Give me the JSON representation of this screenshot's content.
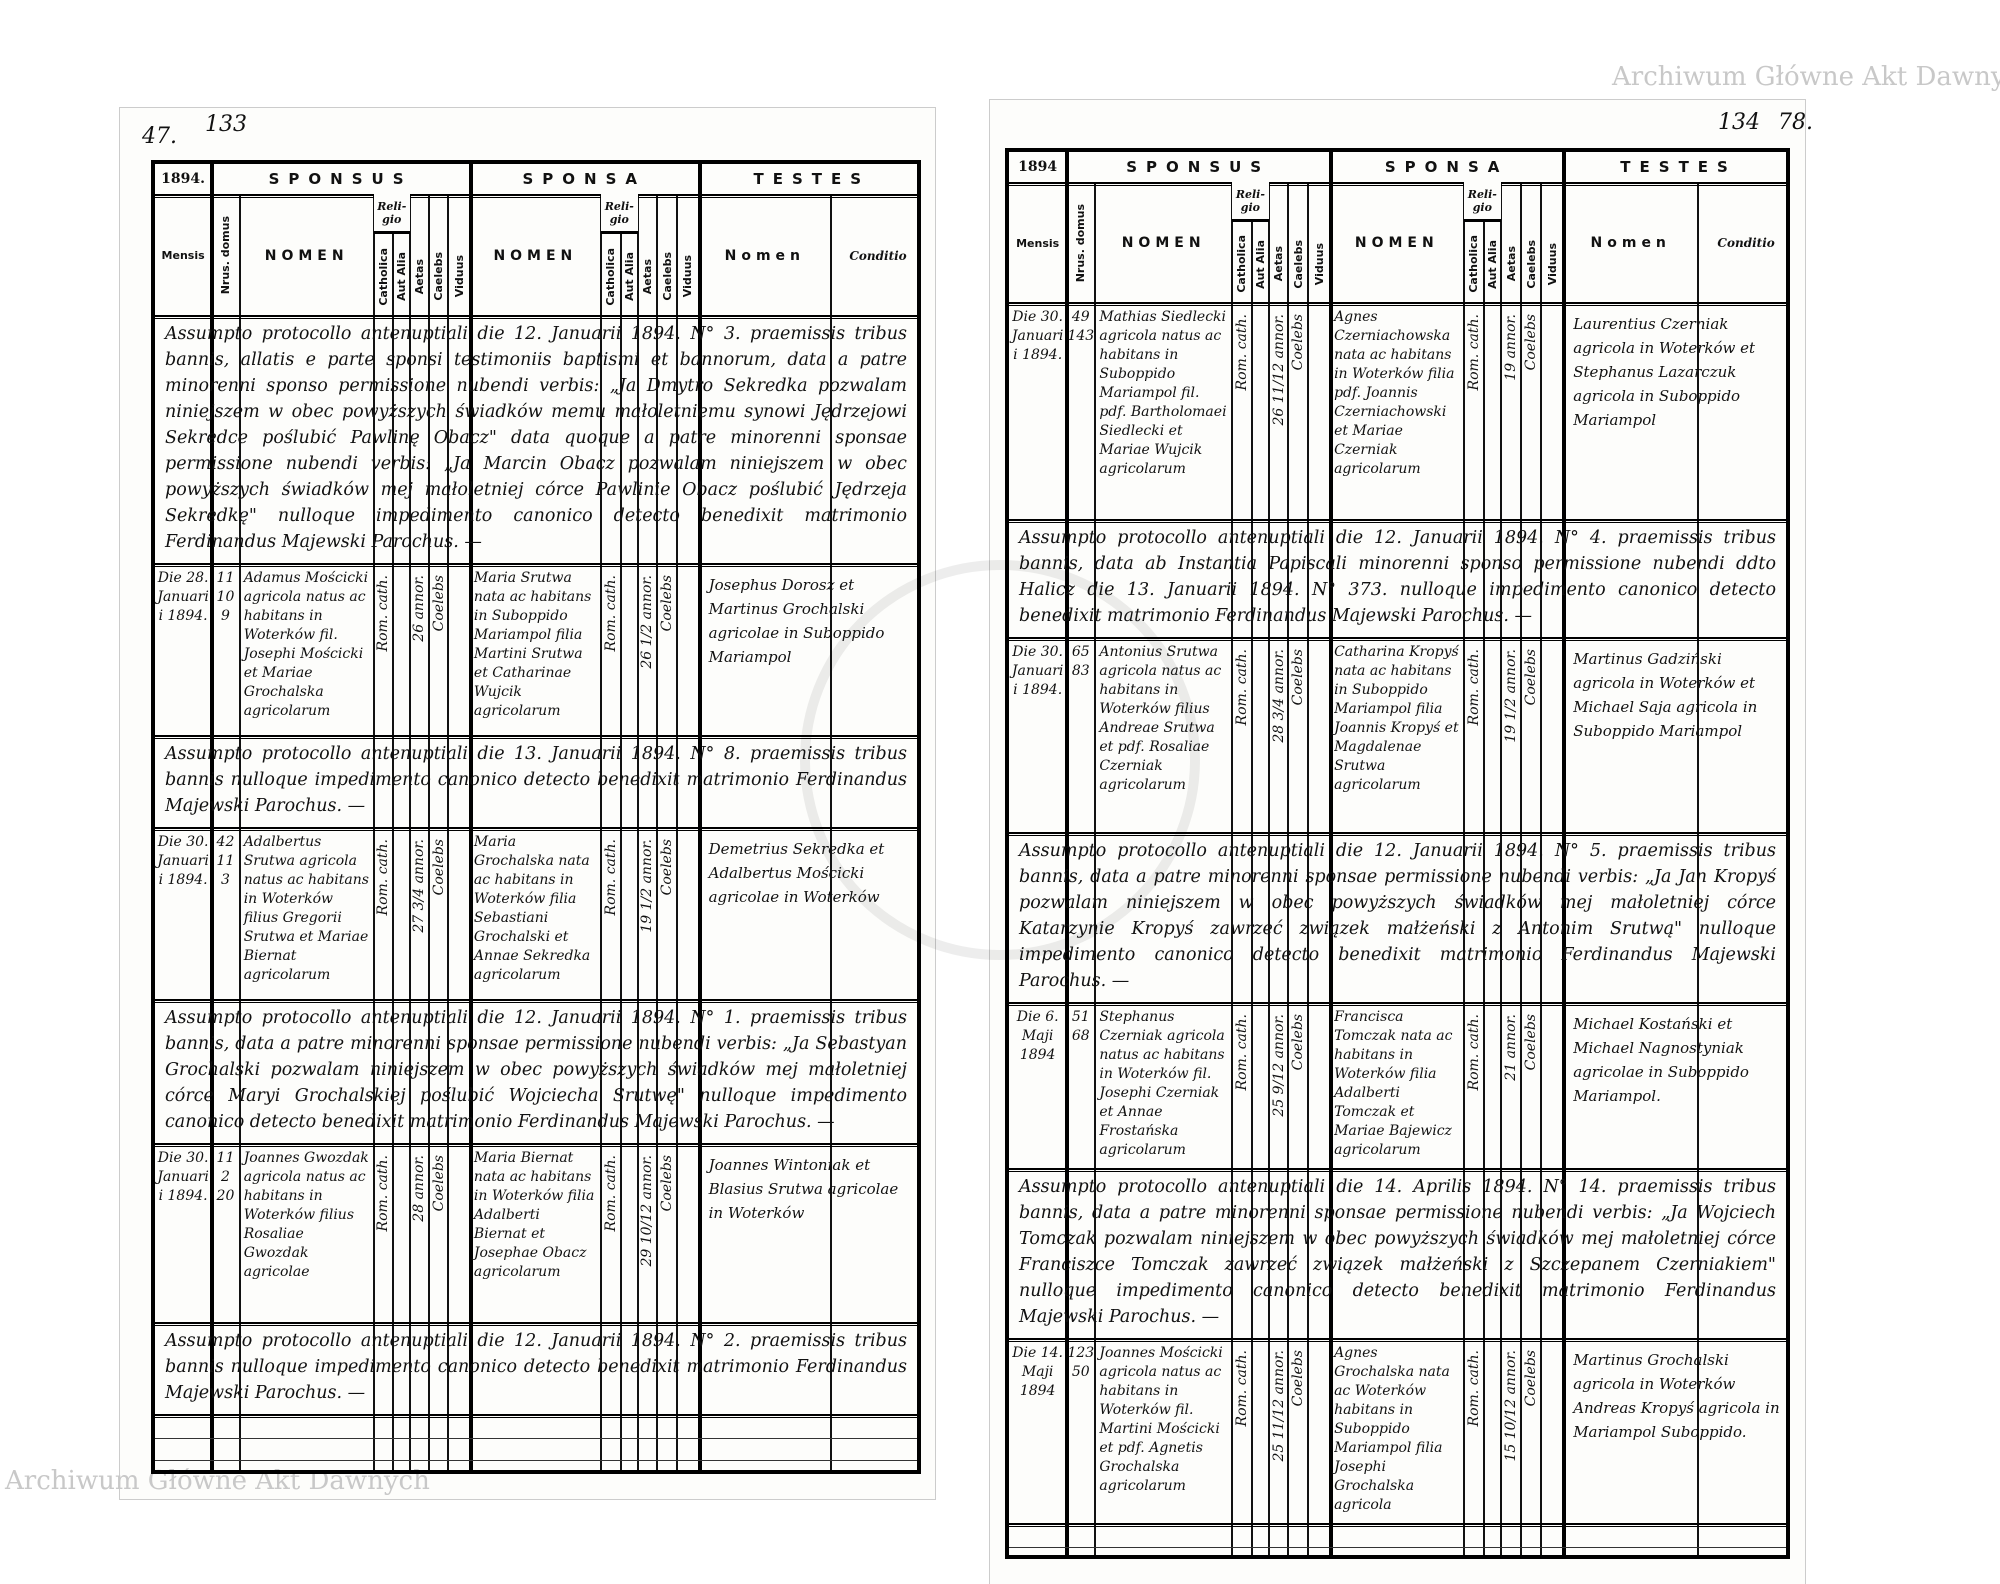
{
  "header": {
    "sponsus": "SPONSUS",
    "sponsa": "SPONSA",
    "testes": "TESTES",
    "mensis": "Mensis",
    "nrus_domus": "Nrus. domus",
    "nomen": "NOMEN",
    "religio": "Reli-gio",
    "catholica": "Catholica",
    "aut_alia": "Aut Alia",
    "aetas": "Aetas",
    "caelebs": "Caelebs",
    "viduus": "Viduus",
    "testes_nomen": "Nomen",
    "conditio": "Conditio"
  },
  "watermark": "Archiwum Główne Akt Dawnych",
  "pages": [
    {
      "page_number": "47.",
      "archive_number": "133",
      "year": "1894.",
      "rows": [
        {
          "type": "note",
          "text": "Assumpto protocollo antenuptiali die 12. Januarii 1894. N° 3. praemissis tribus bannis, allatis e parte sponsi testimoniis baptismi et bannorum, data a patre minorenni sponso permissione nubendi verbis: „Ja Dmytro Sekredka pozwalam niniejszem w obec powyższych świadków memu małoletniemu synowi Jędrzejowi Sekredce poślubić Pawlinę Obacz\" data quoque a patre minorenni sponsae permissione nubendi verbis: „Ja Marcin Obacz pozwalam niniejszem w obec powyższych świadków mej małoletniej córce Pawlinie Obacz poślubić Jędrzeja Sekredkę\" nulloque impedimento canonico detecto benedixit matrimonio Ferdinandus Majewski Parochus. —"
        },
        {
          "type": "entry",
          "mensis": "Die 28. Januarii 1894.",
          "nrus": [
            "11",
            "109"
          ],
          "sponsus": {
            "nomen": "Adamus Mościcki agricola natus ac habitans in Woterków fil. Josephi Mościcki et Mariae Grochalska agricolarum",
            "religio": "Rom. cath.",
            "aetas": "26 annor.",
            "status": "Coelebs"
          },
          "sponsa": {
            "nomen": "Maria Srutwa nata ac habitans in Suboppido Mariampol filia Martini Srutwa et Catharinae Wujcik agricolarum",
            "religio": "Rom. cath.",
            "aetas": "26 1/2 annor.",
            "status": "Coelebs"
          },
          "testes": "Josephus Dorosz et Martinus Grochalski agricolae in Suboppido Mariampol"
        },
        {
          "type": "note",
          "text": "Assumpto protocollo antenuptiali die 13. Januarii 1894. N° 8. praemissis tribus bannis nulloque impedimento canonico detecto benedixit matrimonio Ferdinandus Majewski Parochus. —"
        },
        {
          "type": "entry",
          "mensis": "Die 30. Januarii 1894.",
          "nrus": [
            "42",
            "113"
          ],
          "sponsus": {
            "nomen": "Adalbertus Srutwa agricola natus ac habitans in Woterków filius Gregorii Srutwa et Mariae Biernat agricolarum",
            "religio": "Rom. cath.",
            "aetas": "27 3/4 annor.",
            "status": "Coelebs"
          },
          "sponsa": {
            "nomen": "Maria Grochalska nata ac habitans in Woterków filia Sebastiani Grochalski et Annae Sekredka agricolarum",
            "religio": "Rom. cath.",
            "aetas": "19 1/2 annor.",
            "status": "Coelebs"
          },
          "testes": "Demetrius Sekredka et Adalbertus Mościcki agricolae in Woterków"
        },
        {
          "type": "note",
          "text": "Assumpto protocollo antenuptiali die 12. Januarii 1894. N° 1. praemissis tribus bannis, data a patre minorenni sponsae permissione nubendi verbis: „Ja Sebastyan Grochalski pozwalam niniejszem w obec powyższych świadków mej małoletniej córce Maryi Grochalskiej poślubić Wojciecha Srutwę\" nulloque impedimento canonico detecto benedixit matrimonio Ferdinandus Majewski Parochus. —"
        },
        {
          "type": "entry",
          "mensis": "Die 30. Januarii 1894.",
          "nrus": [
            "112",
            "20"
          ],
          "sponsus": {
            "nomen": "Joannes Gwozdak agricola natus ac habitans in Woterków filius Rosaliae Gwozdak agricolae",
            "religio": "Rom. cath.",
            "aetas": "28 annor.",
            "status": "Coelebs"
          },
          "sponsa": {
            "nomen": "Maria Biernat nata ac habitans in Woterków filia Adalberti Biernat et Josephae Obacz agricolarum",
            "religio": "Rom. cath.",
            "aetas": "29 10/12 annor.",
            "status": "Coelebs"
          },
          "testes": "Joannes Wintoniak et Blasius Srutwa agricolae in Woterków"
        },
        {
          "type": "note",
          "text": "Assumpto protocollo antenuptiali die 12. Januarii 1894. N° 2. praemissis tribus bannis nulloque impedimento canonico detecto benedixit matrimonio Ferdinandus Majewski Parochus. —"
        }
      ]
    },
    {
      "page_number": "78.",
      "archive_number": "134",
      "year": "1894",
      "rows": [
        {
          "type": "entry",
          "mensis": "Die 30. Januarii 1894.",
          "nrus": [
            "49",
            "143"
          ],
          "sponsus": {
            "nomen": "Mathias Siedlecki agricola natus ac habitans in Suboppido Mariampol fil. pdf. Bartholomaei Siedlecki et Mariae Wujcik agricolarum",
            "religio": "Rom. cath.",
            "aetas": "26 11/12 annor.",
            "status": "Coelebs"
          },
          "sponsa": {
            "nomen": "Agnes Czerniachowska nata ac habitans in Woterków filia pdf. Joannis Czerniachowski et Mariae Czerniak agricolarum",
            "religio": "Rom. cath.",
            "aetas": "19 annor.",
            "status": "Coelebs"
          },
          "testes": "Laurentius Czerniak agricola in Woterków et Stephanus Lazarczuk agricola in Suboppido Mariampol"
        },
        {
          "type": "note",
          "text": "Assumpto protocollo antenuptiali die 12. Januarii 1894. N° 4. praemissis tribus bannis, data ab Instantia Papiscali minorenni sponso permissione nubendi ddto Halicz die 13. Januarii 1894. N° 373. nulloque impedimento canonico detecto benedixit matrimonio Ferdinandus Majewski Parochus. —"
        },
        {
          "type": "entry",
          "mensis": "Die 30. Januarii 1894.",
          "nrus": [
            "65",
            "83"
          ],
          "sponsus": {
            "nomen": "Antonius Srutwa agricola natus ac habitans in Woterków filius Andreae Srutwa et pdf. Rosaliae Czerniak agricolarum",
            "religio": "Rom. cath.",
            "aetas": "28 3/4 annor.",
            "status": "Coelebs"
          },
          "sponsa": {
            "nomen": "Catharina Kropyś nata ac habitans in Suboppido Mariampol filia Joannis Kropyś et Magdalenae Srutwa agricolarum",
            "religio": "Rom. cath.",
            "aetas": "19 1/2 annor.",
            "status": "Coelebs"
          },
          "testes": "Martinus Gadziński agricola in Woterków et Michael Saja agricola in Suboppido Mariampol"
        },
        {
          "type": "note",
          "text": "Assumpto protocollo antenuptiali die 12. Januarii 1894. N° 5. praemissis tribus bannis, data a patre minorenni sponsae permissione nubendi verbis: „Ja Jan Kropyś pozwalam niniejszem w obec powyższych świadków mej małoletniej córce Katarzynie Kropyś zawrzeć związek małżeński z Antonim Srutwą\" nulloque impedimento canonico detecto benedixit matrimonio Ferdinandus Majewski Parochus. —"
        },
        {
          "type": "entry",
          "mensis": "Die 6. Maji 1894",
          "nrus": [
            "51",
            "68"
          ],
          "sponsus": {
            "nomen": "Stephanus Czerniak agricola natus ac habitans in Woterków fil. Josephi Czerniak et Annae Frostańska agricolarum",
            "religio": "Rom. cath.",
            "aetas": "25 9/12 annor.",
            "status": "Coelebs"
          },
          "sponsa": {
            "nomen": "Francisca Tomczak nata ac habitans in Woterków filia Adalberti Tomczak et Mariae Bajewicz agricolarum",
            "religio": "Rom. cath.",
            "aetas": "21 annor.",
            "status": "Coelebs"
          },
          "testes": "Michael Kostański et Michael Nagnostyniak agricolae in Suboppido Mariampol."
        },
        {
          "type": "note",
          "text": "Assumpto protocollo antenuptiali die 14. Aprilis 1894. N° 14. praemissis tribus bannis, data a patre minorenni sponsae permissione nubendi verbis: „Ja Wojciech Tomczak pozwalam niniejszem w obec powyższych świadków mej małoletniej córce Franciszce Tomczak zawrzeć związek małżeński z Szczepanem Czerniakiem\" nulloque impedimento canonico detecto benedixit matrimonio Ferdinandus Majewski Parochus. —"
        },
        {
          "type": "entry",
          "mensis": "Die 14. Maji 1894",
          "nrus": [
            "123",
            "50"
          ],
          "sponsus": {
            "nomen": "Joannes Mościcki agricola natus ac habitans in Woterków fil. Martini Mościcki et pdf. Agnetis Grochalska agricolarum",
            "religio": "Rom. cath.",
            "aetas": "25 11/12 annor.",
            "status": "Coelebs"
          },
          "sponsa": {
            "nomen": "Agnes Grochalska nata ac Woterków habitans in Suboppido Mariampol filia Josephi Grochalska agricola",
            "religio": "Rom. cath.",
            "aetas": "15 10/12 annor.",
            "status": "Coelebs"
          },
          "testes": "Martinus Grochalski agricola in Woterków Andreas Kropyś agricola in Mariampol Suboppido."
        }
      ]
    }
  ]
}
